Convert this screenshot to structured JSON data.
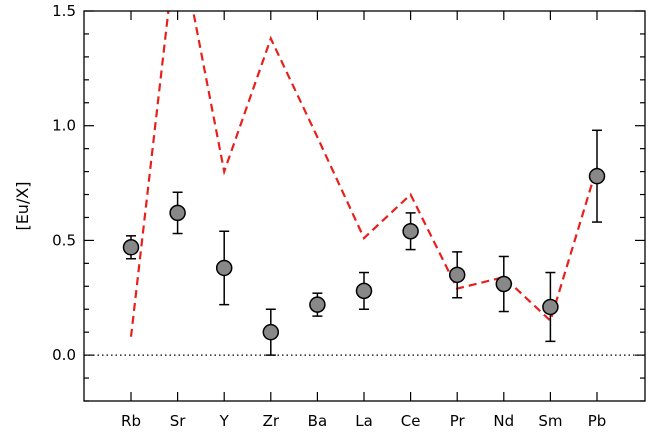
{
  "chart_data": {
    "type": "scatter",
    "xlabel": "",
    "ylabel": "[Eu/X]",
    "ylim": [
      -0.2,
      1.5
    ],
    "categories": [
      "Rb",
      "Sr",
      "Y",
      "Zr",
      "Ba",
      "La",
      "Ce",
      "Pr",
      "Nd",
      "Sm",
      "Pb"
    ],
    "y_ticks": [
      0.0,
      0.5,
      1.0,
      1.5
    ],
    "y_tick_labels": [
      "0.0",
      "0.5",
      "1.0",
      "1.5"
    ],
    "reference_line": {
      "y": 0.0,
      "style": "dotted",
      "color": "#000000"
    },
    "series": [
      {
        "type": "scatter",
        "marker": "circle",
        "color": "#888888",
        "values": [
          0.47,
          0.62,
          0.38,
          0.1,
          0.22,
          0.28,
          0.54,
          0.35,
          0.31,
          0.21,
          0.78
        ],
        "err_low": [
          0.42,
          0.53,
          0.22,
          0.0,
          0.17,
          0.2,
          0.46,
          0.25,
          0.19,
          0.06,
          0.58
        ],
        "err_high": [
          0.52,
          0.71,
          0.54,
          0.2,
          0.27,
          0.36,
          0.62,
          0.45,
          0.43,
          0.36,
          0.98
        ]
      },
      {
        "type": "line",
        "style": "dashed",
        "color": "#e8201c",
        "values": [
          0.08,
          1.85,
          0.8,
          1.38,
          0.95,
          0.51,
          0.7,
          0.29,
          0.34,
          0.15,
          0.82
        ]
      }
    ],
    "grid": false
  }
}
